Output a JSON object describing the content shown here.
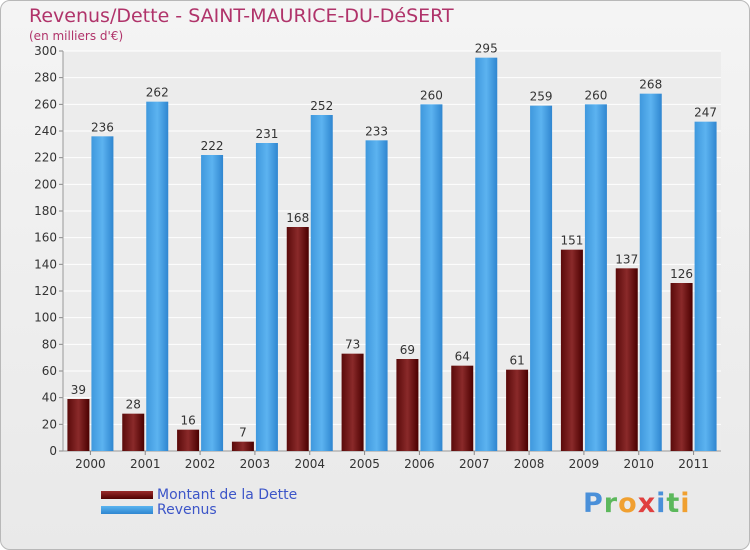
{
  "chart_data": {
    "type": "bar",
    "title": "Revenus/Dette - SAINT-MAURICE-DU-DéSERT",
    "subtitle": "(en milliers d'€)",
    "categories": [
      "2000",
      "2001",
      "2002",
      "2003",
      "2004",
      "2005",
      "2006",
      "2007",
      "2008",
      "2009",
      "2010",
      "2011"
    ],
    "series": [
      {
        "name": "Montant de la Dette",
        "color": "#7a1a1a",
        "values": [
          39,
          28,
          16,
          7,
          168,
          73,
          69,
          64,
          61,
          151,
          137,
          126
        ]
      },
      {
        "name": "Revenus",
        "color": "#4aa3e8",
        "values": [
          236,
          262,
          222,
          231,
          252,
          233,
          260,
          295,
          259,
          260,
          268,
          247
        ]
      }
    ],
    "ylim": [
      0,
      300
    ],
    "yticks": [
      0,
      20,
      40,
      60,
      80,
      100,
      120,
      140,
      160,
      180,
      200,
      220,
      240,
      260,
      280,
      300
    ],
    "grid": true,
    "legend": "bottom-left"
  },
  "logo": {
    "letters": [
      {
        "char": "P",
        "color": "#4a90d9"
      },
      {
        "char": "r",
        "color": "#5cb85c"
      },
      {
        "char": "o",
        "color": "#f0a030"
      },
      {
        "char": "x",
        "color": "#e04040"
      },
      {
        "char": "i",
        "color": "#4a90d9"
      },
      {
        "char": "t",
        "color": "#5cb85c"
      },
      {
        "char": "i",
        "color": "#f0a030"
      }
    ]
  }
}
